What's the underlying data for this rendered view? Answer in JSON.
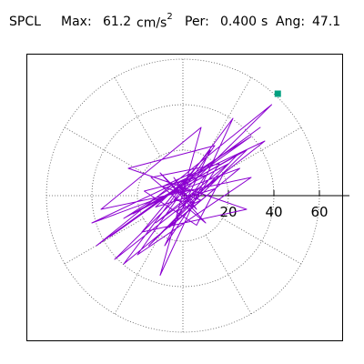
{
  "header": {
    "station": "SPCL",
    "max_label": "Max:",
    "max_value": "61.2",
    "max_unit": "cm/s",
    "max_unit_exp": "2",
    "per_label": "Per:",
    "per_value": "0.400",
    "per_unit": "s",
    "ang_label": "Ang:",
    "ang_value": "47.1"
  },
  "chart_data": {
    "type": "scatter",
    "title": "SPCL  Max: 61.2 cm/s2  Per: 0.400 s  Ang: 47.1",
    "xlabel": "",
    "ylabel": "",
    "radial_ticks": [
      20,
      40,
      60
    ],
    "radial_range": [
      0,
      65
    ],
    "grid": "polar, dotted rings at 20, 40, 60 and radial spokes every 30 degrees",
    "max_radius": 61.2,
    "max_angle_deg": 47.1,
    "peak_marker": {
      "x": 41.7,
      "y": 44.8,
      "color": "#00a080"
    },
    "trace_color": "#8b00d0",
    "series": [
      {
        "values": [
          [
            0,
            0
          ],
          [
            3,
            2
          ],
          [
            -2,
            4
          ],
          [
            5,
            -3
          ],
          [
            -4,
            -2
          ],
          [
            2,
            6
          ],
          [
            -6,
            1
          ],
          [
            7,
            3
          ],
          [
            -3,
            -7
          ],
          [
            8,
            -2
          ],
          [
            -9,
            4
          ],
          [
            4,
            10
          ],
          [
            -12,
            -5
          ],
          [
            14,
            3
          ],
          [
            -6,
            -14
          ],
          [
            10,
            9
          ],
          [
            -17,
            2
          ],
          [
            6,
            -13
          ],
          [
            18,
            10
          ],
          [
            -12,
            -12
          ],
          [
            20,
            14
          ],
          [
            -22,
            -8
          ],
          [
            24,
            18
          ],
          [
            -15,
            -22
          ],
          [
            28,
            20
          ],
          [
            -26,
            -10
          ],
          [
            30,
            26
          ],
          [
            -32,
            -18
          ],
          [
            34,
            30
          ],
          [
            -38,
            -22
          ],
          [
            39,
            40
          ],
          [
            -30,
            -28
          ],
          [
            36,
            24
          ],
          [
            -40,
            -12
          ],
          [
            25,
            12
          ],
          [
            -26,
            -30
          ],
          [
            22,
            34
          ],
          [
            -10,
            -35
          ],
          [
            8,
            30
          ],
          [
            -36,
            -6
          ],
          [
            30,
            8
          ],
          [
            -20,
            -26
          ],
          [
            14,
            22
          ],
          [
            -24,
            12
          ],
          [
            28,
            -6
          ],
          [
            -18,
            -16
          ],
          [
            12,
            20
          ],
          [
            -8,
            -22
          ],
          [
            16,
            14
          ],
          [
            -14,
            8
          ],
          [
            10,
            -12
          ],
          [
            -10,
            10
          ],
          [
            6,
            -6
          ],
          [
            -4,
            8
          ],
          [
            3,
            -3
          ],
          [
            -2,
            2
          ],
          [
            1,
            -1
          ],
          [
            0,
            0
          ]
        ]
      }
    ]
  }
}
